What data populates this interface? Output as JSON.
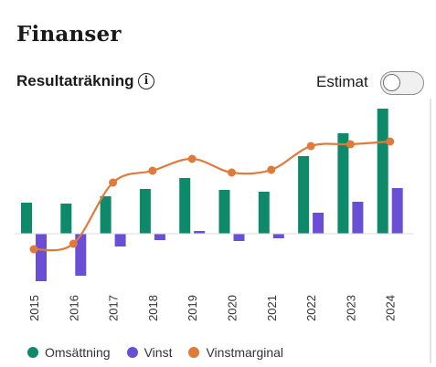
{
  "header": {
    "title": "Finanser"
  },
  "section": {
    "title": "Resultaträkning",
    "info_icon": "info-icon"
  },
  "estimate": {
    "label": "Estimat",
    "enabled": false
  },
  "colors": {
    "revenue": "#0e8a6a",
    "profit": "#6a4fd6",
    "margin": "#e07a3a"
  },
  "chart_data": {
    "type": "bar",
    "categories": [
      "2015",
      "2016",
      "2017",
      "2018",
      "2019",
      "2020",
      "2021",
      "2022",
      "2023",
      "2024"
    ],
    "series": [
      {
        "name": "Omsättning",
        "type": "bar",
        "values": [
          34,
          33,
          41,
          49,
          61,
          48,
          46,
          85,
          110,
          137
        ]
      },
      {
        "name": "Vinst",
        "type": "bar",
        "values": [
          -52,
          -46,
          -14,
          -7,
          3,
          -8,
          -5,
          23,
          35,
          50
        ]
      },
      {
        "name": "Vinstmarginal",
        "type": "line",
        "values": [
          -17,
          -11,
          56,
          69,
          82,
          67,
          70,
          96,
          98,
          101
        ]
      }
    ],
    "legend_position": "bottom-left",
    "grid": false
  }
}
